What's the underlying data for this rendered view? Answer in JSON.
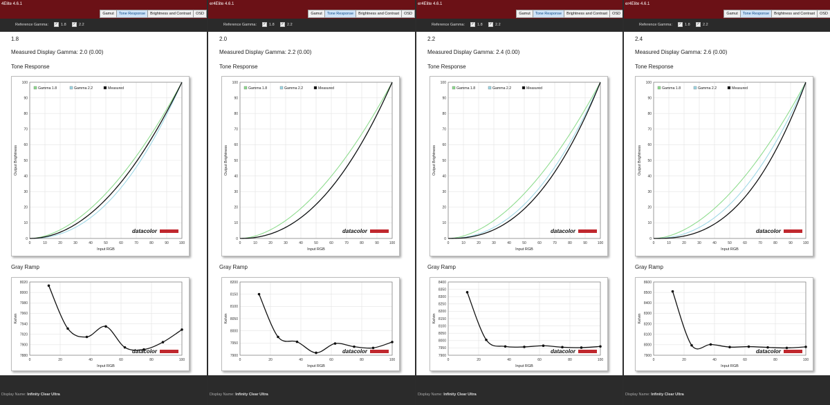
{
  "tabs": [
    "Gamut",
    "Tone Response",
    "Brightness and Contrast",
    "OSD"
  ],
  "window_titles": [
    "4Elite 4.6.1",
    "er4Elite 4.6.1",
    "er4Elite 4.6.1",
    "er4Elite 4.6.1"
  ],
  "ref_gamma_label": "Reference Gamma:",
  "ref_options": [
    "1.8",
    "2.2"
  ],
  "measured_prefix": "Measured Display Gamma:",
  "tone_heading": "Tone Response",
  "ramp_heading": "Gray Ramp",
  "display_name_label": "Display Name:",
  "display_name_value": "Infinity Clear Ultra",
  "brand": "datacolor",
  "colors": {
    "gamma18": "#8fdc8f",
    "gamma22": "#9fd8e6",
    "measured": "#111111",
    "titlebar": "#6b1116",
    "brand_bar": "#c0282e"
  },
  "panels": [
    {
      "gamma_value": "1.8",
      "measured_text": "Measured Display Gamma: 2.0 (0.00)"
    },
    {
      "gamma_value": "2.0",
      "measured_text": "Measured Display Gamma: 2.2 (0.00)"
    },
    {
      "gamma_value": "2.2",
      "measured_text": "Measured Display Gamma: 2.4 (0.00)"
    },
    {
      "gamma_value": "2.4",
      "measured_text": "Measured Display Gamma: 2.6 (0.00)"
    }
  ],
  "chart_data": [
    {
      "type": "line",
      "title": "Tone Response",
      "xlabel": "Input RGB",
      "ylabel": "Output Brightness",
      "xlim": [
        0,
        100
      ],
      "ylim": [
        0,
        100
      ],
      "x_ticks": [
        0,
        10,
        20,
        30,
        40,
        50,
        60,
        70,
        80,
        90,
        100
      ],
      "y_ticks": [
        0,
        10,
        20,
        30,
        40,
        50,
        60,
        70,
        80,
        90,
        100
      ],
      "legend": [
        "Gamma 1.8",
        "Gamma 2.2",
        "Measured"
      ],
      "series": [
        {
          "name": "Gamma 1.8",
          "gamma": 1.8
        },
        {
          "name": "Gamma 2.2",
          "gamma": 2.2
        },
        {
          "name": "Measured",
          "gamma": 2.0
        }
      ]
    },
    {
      "type": "line",
      "title": "Gray Ramp",
      "xlabel": "Input RGB",
      "ylabel": "Kelvin",
      "xlim": [
        0,
        100
      ],
      "ylim": [
        7880,
        8020
      ],
      "x_ticks": [
        0,
        20,
        40,
        60,
        80,
        100
      ],
      "y_ticks": [
        7880,
        7900,
        7920,
        7940,
        7960,
        7980,
        8000,
        8020
      ],
      "x": [
        12.5,
        25,
        37.5,
        50,
        62.5,
        75,
        87.5,
        100
      ],
      "values": [
        8013,
        7931,
        7915,
        7935,
        7895,
        7891,
        7905,
        7929
      ]
    },
    {
      "type": "line",
      "title": "Tone Response",
      "xlabel": "Input RGB",
      "ylabel": "Output Brightness",
      "xlim": [
        0,
        100
      ],
      "ylim": [
        0,
        100
      ],
      "x_ticks": [
        0,
        10,
        20,
        30,
        40,
        50,
        60,
        70,
        80,
        90,
        100
      ],
      "y_ticks": [
        0,
        10,
        20,
        30,
        40,
        50,
        60,
        70,
        80,
        90,
        100
      ],
      "legend": [
        "Gamma 1.8",
        "Gamma 2.2",
        "Measured"
      ],
      "series": [
        {
          "name": "Gamma 1.8",
          "gamma": 1.8
        },
        {
          "name": "Gamma 2.2",
          "gamma": 2.2
        },
        {
          "name": "Measured",
          "gamma": 2.2
        }
      ]
    },
    {
      "type": "line",
      "title": "Gray Ramp",
      "xlabel": "Input RGB",
      "ylabel": "Kelvin",
      "xlim": [
        0,
        100
      ],
      "ylim": [
        7900,
        8200
      ],
      "x_ticks": [
        0,
        20,
        40,
        60,
        80,
        100
      ],
      "y_ticks": [
        7900,
        7950,
        8000,
        8050,
        8100,
        8150,
        8200
      ],
      "x": [
        12.5,
        25,
        37.5,
        50,
        62.5,
        75,
        87.5,
        100
      ],
      "values": [
        8150,
        7975,
        7955,
        7910,
        7948,
        7935,
        7930,
        7954
      ]
    },
    {
      "type": "line",
      "title": "Tone Response",
      "xlabel": "Input RGB",
      "ylabel": "Output Brightness",
      "xlim": [
        0,
        100
      ],
      "ylim": [
        0,
        100
      ],
      "x_ticks": [
        0,
        10,
        20,
        30,
        40,
        50,
        60,
        70,
        80,
        90,
        100
      ],
      "y_ticks": [
        0,
        10,
        20,
        30,
        40,
        50,
        60,
        70,
        80,
        90,
        100
      ],
      "legend": [
        "Gamma 1.8",
        "Gamma 2.2",
        "Measured"
      ],
      "series": [
        {
          "name": "Gamma 1.8",
          "gamma": 1.8
        },
        {
          "name": "Gamma 2.2",
          "gamma": 2.2
        },
        {
          "name": "Measured",
          "gamma": 2.4
        }
      ]
    },
    {
      "type": "line",
      "title": "Gray Ramp",
      "xlabel": "Input RGB",
      "ylabel": "Kelvin",
      "xlim": [
        0,
        100
      ],
      "ylim": [
        7900,
        8400
      ],
      "x_ticks": [
        0,
        20,
        40,
        60,
        80,
        100
      ],
      "y_ticks": [
        7900,
        7950,
        8000,
        8050,
        8100,
        8150,
        8200,
        8250,
        8300,
        8350,
        8400
      ],
      "x": [
        12.5,
        25,
        37.5,
        50,
        62.5,
        75,
        87.5,
        100
      ],
      "values": [
        8330,
        8005,
        7960,
        7957,
        7965,
        7955,
        7952,
        7960
      ]
    },
    {
      "type": "line",
      "title": "Tone Response",
      "xlabel": "Input RGB",
      "ylabel": "Output Brightness",
      "xlim": [
        0,
        100
      ],
      "ylim": [
        0,
        100
      ],
      "x_ticks": [
        0,
        10,
        20,
        30,
        40,
        50,
        60,
        70,
        80,
        90,
        100
      ],
      "y_ticks": [
        0,
        10,
        20,
        30,
        40,
        50,
        60,
        70,
        80,
        90,
        100
      ],
      "legend": [
        "Gamma 1.8",
        "Gamma 2.2",
        "Measured"
      ],
      "series": [
        {
          "name": "Gamma 1.8",
          "gamma": 1.8
        },
        {
          "name": "Gamma 2.2",
          "gamma": 2.2
        },
        {
          "name": "Measured",
          "gamma": 2.6
        }
      ]
    },
    {
      "type": "line",
      "title": "Gray Ramp",
      "xlabel": "Input RGB",
      "ylabel": "Kelvin",
      "xlim": [
        0,
        100
      ],
      "ylim": [
        7900,
        8600
      ],
      "x_ticks": [
        0,
        20,
        40,
        60,
        80,
        100
      ],
      "y_ticks": [
        7900,
        8000,
        8100,
        8200,
        8300,
        8400,
        8500,
        8600
      ],
      "x": [
        12.5,
        25,
        37.5,
        50,
        62.5,
        75,
        87.5,
        100
      ],
      "values": [
        8510,
        7995,
        8003,
        7978,
        7982,
        7975,
        7970,
        7980
      ]
    }
  ]
}
